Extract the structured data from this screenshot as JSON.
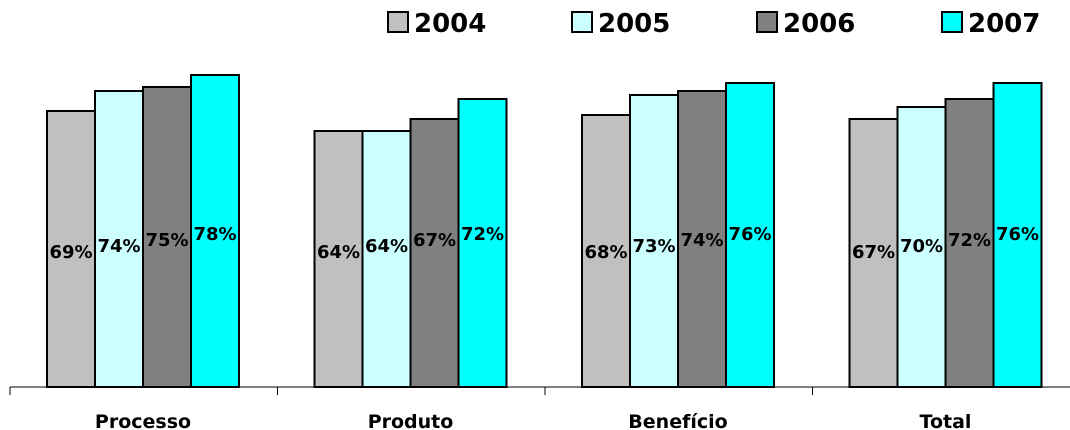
{
  "chart_data": {
    "type": "bar",
    "categories": [
      "Processo",
      "Produto",
      "Benefício",
      "Total"
    ],
    "series": [
      {
        "name": "2004",
        "color": "#c0c0c0",
        "values": [
          69,
          64,
          68,
          67
        ],
        "labels": [
          "69%",
          "64%",
          "68%",
          "67%"
        ]
      },
      {
        "name": "2005",
        "color": "#ccffff",
        "values": [
          74,
          64,
          73,
          70
        ],
        "labels": [
          "74%",
          "64%",
          "73%",
          "70%"
        ]
      },
      {
        "name": "2006",
        "color": "#808080",
        "values": [
          75,
          67,
          74,
          72
        ],
        "labels": [
          "75%",
          "67%",
          "74%",
          "72%"
        ]
      },
      {
        "name": "2007",
        "color": "#00ffff",
        "values": [
          78,
          72,
          76,
          76
        ],
        "labels": [
          "78%",
          "72%",
          "76%",
          "76%"
        ]
      }
    ],
    "ylim": [
      0,
      100
    ],
    "legend_position": "top-right",
    "grid": false
  }
}
